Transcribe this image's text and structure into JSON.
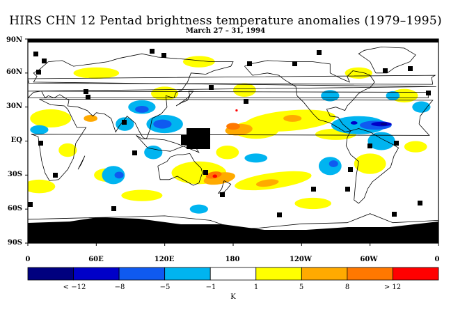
{
  "title": "HIRS CHN 12 Pentad brightness temperature anomalies (1979–1995)",
  "subtitle": "March 27 – 31, 1994",
  "lat_labels": [
    "90N",
    "60N",
    "30N",
    "EQ",
    "30S",
    "60S",
    "90S"
  ],
  "lon_labels": [
    "0",
    "60E",
    "120E",
    "180",
    "120W",
    "60W",
    "0"
  ],
  "colorbar": {
    "colors": [
      "#00007f",
      "#0000c8",
      "#0f5af0",
      "#00b4f0",
      "#ffffff",
      "#ffff00",
      "#ffaa00",
      "#ff7800",
      "#ff0000"
    ],
    "labels": [
      "< −12",
      "−8",
      "−5",
      "−1",
      "1",
      "5",
      "8",
      "> 12"
    ],
    "unit": "K"
  },
  "palette": {
    "missing": "#000000",
    "coast": "#000000"
  }
}
